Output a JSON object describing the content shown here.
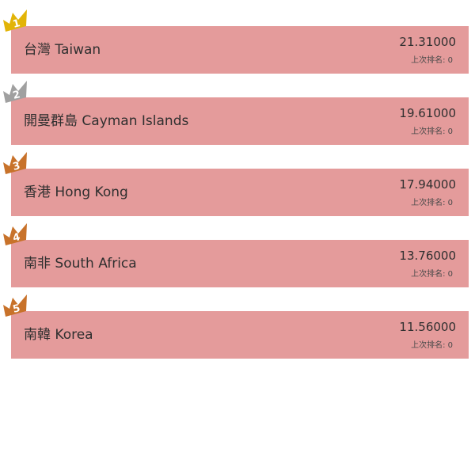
{
  "colors": {
    "row_background": "#e49b9b",
    "crown_gold": "#e2b407",
    "crown_silver": "#a0a0a0",
    "crown_bronze": "#c8722a"
  },
  "ranking": {
    "items": [
      {
        "rank": "1",
        "name": "台灣 Taiwan",
        "score": "21.31000",
        "last_rank": "上次排名: 0",
        "crown_color": "#e2b407"
      },
      {
        "rank": "2",
        "name": "開曼群島 Cayman Islands",
        "score": "19.61000",
        "last_rank": "上次排名: 0",
        "crown_color": "#a0a0a0"
      },
      {
        "rank": "3",
        "name": "香港 Hong Kong",
        "score": "17.94000",
        "last_rank": "上次排名: 0",
        "crown_color": "#c8722a"
      },
      {
        "rank": "4",
        "name": "南非 South Africa",
        "score": "13.76000",
        "last_rank": "上次排名: 0",
        "crown_color": "#c8722a"
      },
      {
        "rank": "5",
        "name": "南韓 Korea",
        "score": "11.56000",
        "last_rank": "上次排名: 0",
        "crown_color": "#c8722a"
      }
    ]
  }
}
